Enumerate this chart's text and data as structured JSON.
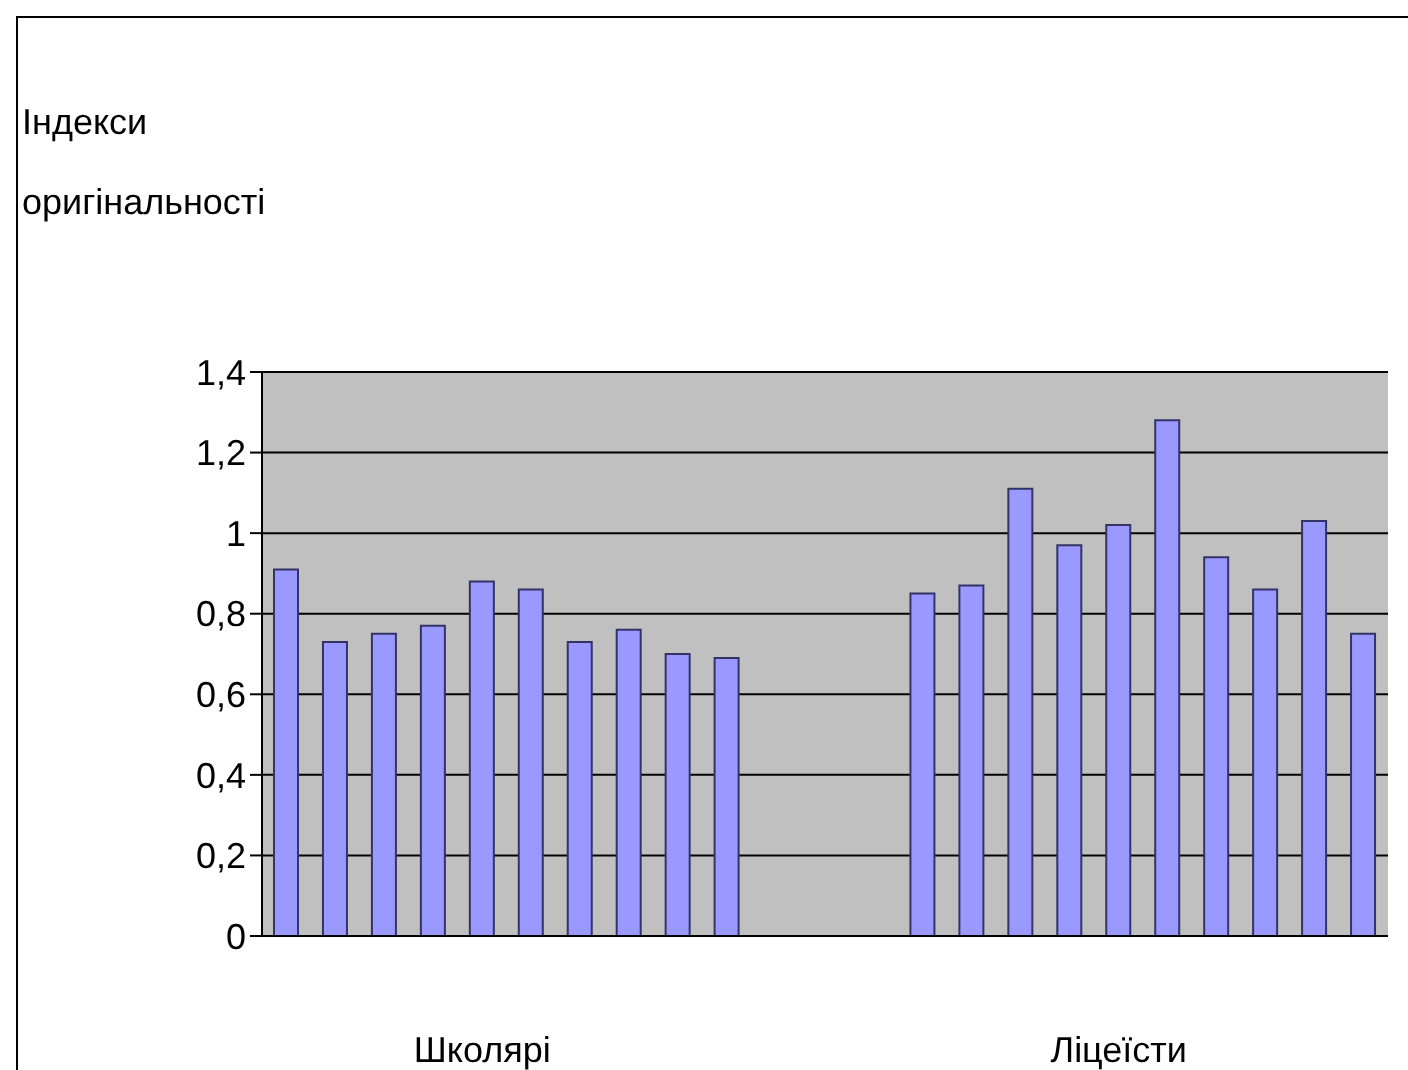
{
  "chart_data": {
    "type": "bar",
    "ylabel": "Індекси оригінальності",
    "categories": [
      null,
      null,
      null,
      null,
      "Школярі",
      null,
      null,
      null,
      null,
      null,
      null,
      null,
      null,
      null,
      null,
      null,
      null,
      "Ліцеїсти",
      null,
      null,
      null,
      null,
      null
    ],
    "values": [
      0.91,
      0.73,
      0.75,
      0.77,
      0.88,
      0.86,
      0.73,
      0.76,
      0.7,
      0.69,
      null,
      null,
      null,
      0.85,
      0.87,
      1.11,
      0.97,
      1.02,
      1.28,
      0.94,
      0.86,
      1.03,
      0.75
    ],
    "color": "#9999ff",
    "ylim": [
      0,
      1.4
    ],
    "yticks": [
      0,
      {
        "value": 0.2,
        "label": "0,2"
      },
      {
        "value": 0.4,
        "label": "0,4"
      },
      {
        "value": 0.6,
        "label": "0,6"
      },
      {
        "value": 0.8,
        "label": "0,8"
      },
      1,
      {
        "value": 1.2,
        "label": "1,2"
      },
      {
        "value": 1.4,
        "label": "1,4"
      }
    ],
    "grid": "y"
  }
}
